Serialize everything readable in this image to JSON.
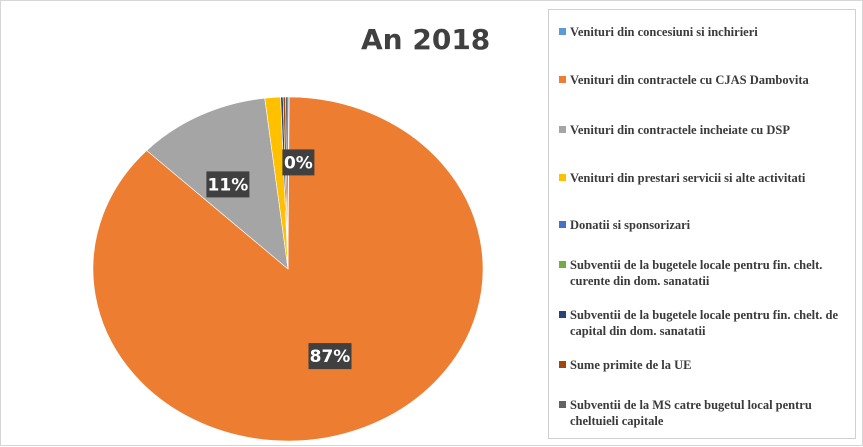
{
  "chart_data": {
    "type": "pie",
    "title": "An 2018",
    "legend_position": "right",
    "slices": [
      {
        "name": "Venituri din concesiuni si inchirieri",
        "value": 0.1,
        "color": "#5b9bd5"
      },
      {
        "name": "Venituri din contractele cu CJAS Dambovita",
        "value": 87,
        "color": "#ed7d31"
      },
      {
        "name": "Venituri din contractele incheiate cu DSP",
        "value": 11,
        "color": "#a5a5a5"
      },
      {
        "name": "Venituri din prestari servicii si alte activitati",
        "value": 1.3,
        "color": "#ffc000"
      },
      {
        "name": "Donatii si sponsorizari",
        "value": 0,
        "color": "#4472c4"
      },
      {
        "name": "Subventii de la bugetele locale pentru fin. chelt. curente din dom. sanatatii",
        "value": 0,
        "color": "#70ad47"
      },
      {
        "name": "Subventii de la bugetele locale pentru fin. chelt. de capital din dom. sanatatii",
        "value": 0.2,
        "color": "#264478"
      },
      {
        "name": "Sume primite de la UE",
        "value": 0.2,
        "color": "#9e480e"
      },
      {
        "name": "Subventii de la MS catre bugetul local pentru cheltuieli capitale",
        "value": 0.2,
        "color": "#636363"
      }
    ],
    "data_labels": [
      {
        "text": "87%",
        "slice": 1
      },
      {
        "text": "11%",
        "slice": 2
      },
      {
        "text": "0%",
        "slice": 0
      }
    ]
  }
}
